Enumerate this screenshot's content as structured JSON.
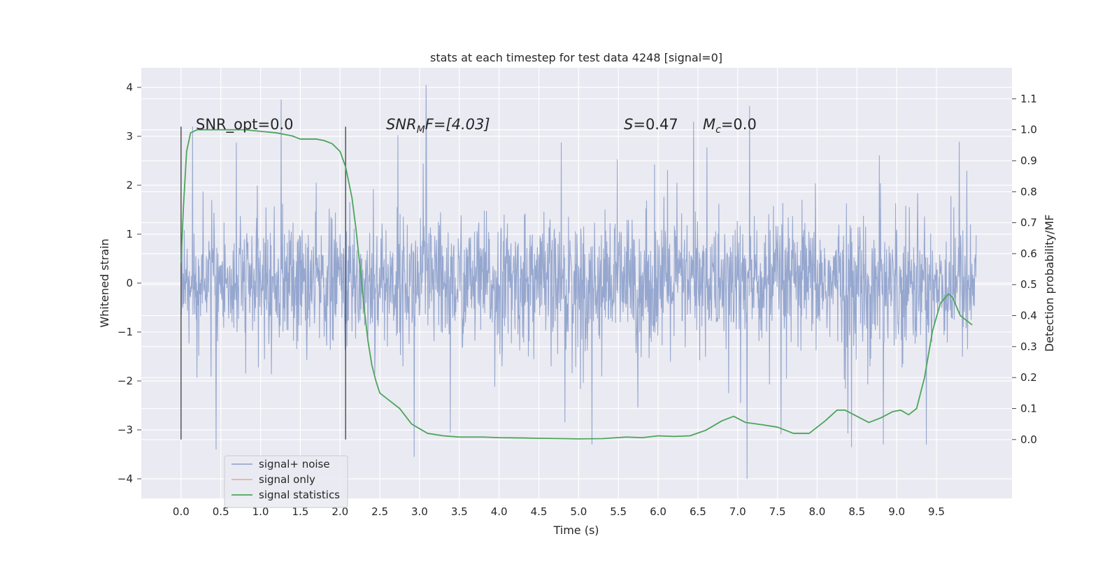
{
  "chart_data": {
    "type": "line",
    "title": "stats at each timestep for test data 4248 [signal=0]",
    "xlabel": "Time (s)",
    "ylabel": "Whitened strain",
    "y2label": "Detection probability/MF",
    "xlim": [
      -0.5,
      10.45
    ],
    "ylim": [
      -4.4,
      4.4
    ],
    "y2lim": [
      -0.19,
      1.2
    ],
    "x_ticks": [
      "0.0",
      "0.5",
      "1.0",
      "1.5",
      "2.0",
      "2.5",
      "3.0",
      "3.5",
      "4.0",
      "4.5",
      "5.0",
      "5.5",
      "6.0",
      "6.5",
      "7.0",
      "7.5",
      "8.0",
      "8.5",
      "9.0",
      "9.5"
    ],
    "y_ticks": [
      "4",
      "3",
      "2",
      "1",
      "0",
      "−1",
      "−2",
      "−3",
      "−4"
    ],
    "y2_ticks": [
      "1.1",
      "1.0",
      "0.9",
      "0.8",
      "0.7",
      "0.6",
      "0.5",
      "0.4",
      "0.3",
      "0.2",
      "0.1",
      "0.0"
    ],
    "grid": true,
    "legend_position": "bottom-left",
    "annotations": {
      "snr_opt": "SNR_opt=0.0",
      "snr_mf": "SNR",
      "snr_mf_sub": "M",
      "snr_mf_rest": "F=[4.03]",
      "s_var": "S",
      "s_val": "=0.47",
      "mc_var": "M",
      "mc_sub": "c",
      "mc_val": "=0.0"
    },
    "vlines": [
      0.0,
      2.07
    ],
    "series": [
      {
        "name": "signal+ noise",
        "color": "#8da0cb",
        "kind": "noise",
        "x_range": [
          0.0,
          10.0
        ],
        "envelope_sigma": 0.65,
        "extremes": [
          [
            1.26,
            3.75
          ],
          [
            3.08,
            4.05
          ],
          [
            7.15,
            3.62
          ],
          [
            7.12,
            -4.0
          ],
          [
            2.93,
            -3.55
          ],
          [
            0.44,
            -3.4
          ],
          [
            8.43,
            -3.35
          ]
        ]
      },
      {
        "name": "signal only",
        "color": "#e5a78e",
        "kind": "line",
        "x": [],
        "y": []
      },
      {
        "name": "signal statistics",
        "color": "#4ca55a",
        "kind": "line",
        "axis": "right",
        "x": [
          0.0,
          0.03,
          0.07,
          0.12,
          0.2,
          0.3,
          0.5,
          0.8,
          1.0,
          1.2,
          1.4,
          1.5,
          1.6,
          1.7,
          1.8,
          1.9,
          2.0,
          2.07,
          2.15,
          2.2,
          2.25,
          2.3,
          2.35,
          2.4,
          2.45,
          2.5,
          2.6,
          2.75,
          2.9,
          3.0,
          3.1,
          3.3,
          3.5,
          3.8,
          4.0,
          4.3,
          4.5,
          4.8,
          5.0,
          5.3,
          5.6,
          5.8,
          6.0,
          6.2,
          6.4,
          6.6,
          6.8,
          6.95,
          7.1,
          7.3,
          7.5,
          7.7,
          7.9,
          8.1,
          8.25,
          8.35,
          8.5,
          8.65,
          8.8,
          8.95,
          9.05,
          9.15,
          9.25,
          9.35,
          9.45,
          9.55,
          9.65,
          9.7,
          9.75,
          9.8,
          9.9,
          9.95
        ],
        "y": [
          0.57,
          0.75,
          0.93,
          0.99,
          1.0,
          1.0,
          1.0,
          1.0,
          0.995,
          0.99,
          0.98,
          0.97,
          0.97,
          0.97,
          0.965,
          0.955,
          0.93,
          0.88,
          0.78,
          0.68,
          0.56,
          0.43,
          0.32,
          0.24,
          0.19,
          0.15,
          0.13,
          0.1,
          0.05,
          0.035,
          0.02,
          0.012,
          0.008,
          0.008,
          0.006,
          0.005,
          0.004,
          0.003,
          0.002,
          0.003,
          0.008,
          0.006,
          0.012,
          0.01,
          0.012,
          0.03,
          0.06,
          0.075,
          0.055,
          0.048,
          0.04,
          0.02,
          0.02,
          0.06,
          0.095,
          0.095,
          0.075,
          0.055,
          0.07,
          0.09,
          0.095,
          0.08,
          0.1,
          0.2,
          0.35,
          0.44,
          0.47,
          0.46,
          0.43,
          0.4,
          0.38,
          0.37
        ]
      }
    ]
  }
}
